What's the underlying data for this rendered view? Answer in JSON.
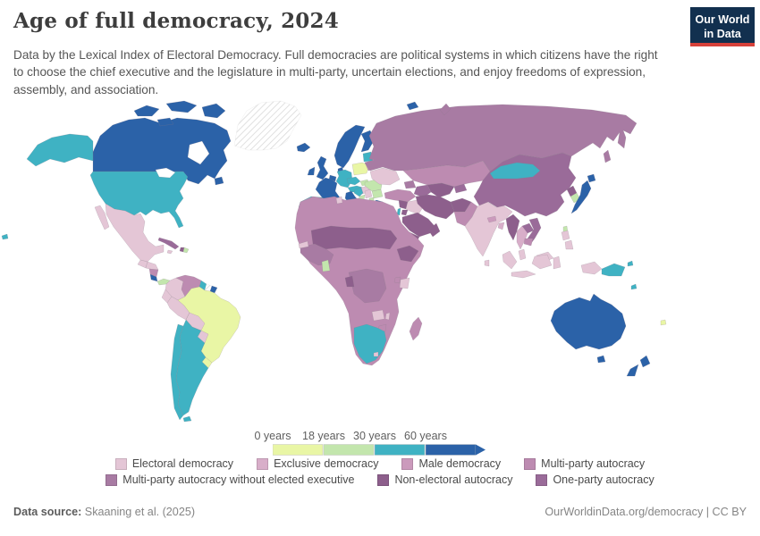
{
  "logo": {
    "line1": "Our World",
    "line2": "in Data"
  },
  "header": {
    "title": "Age of full democracy, 2024",
    "subtitle": "Data by the Lexical Index of Electoral Democracy. Full democracies are political systems in which citizens have the right to choose the chief executive and the legislature in multi-party, uncertain elections, and enjoy freedoms of expression, assembly, and association."
  },
  "footer": {
    "source_label": "Data source:",
    "source_value": " Skaaning et al. (2025)",
    "citation": "OurWorldinData.org/democracy | CC BY"
  },
  "chart_data": {
    "type": "choropleth-map",
    "title": "Age of full democracy, 2024",
    "unit": "years",
    "numeric_scale": {
      "stops": [
        {
          "label": "0 years",
          "color": "#e9f6a5"
        },
        {
          "label": "18 years",
          "color": "#c3e6ad"
        },
        {
          "label": "30 years",
          "color": "#3fb2c3"
        },
        {
          "label": "60 years",
          "color": "#2b62a8"
        }
      ],
      "bins": [
        "0–18 years",
        "18–30 years",
        "30–60 years",
        "60+ years"
      ],
      "arrow_end": true
    },
    "categories": [
      {
        "label": "Electoral democracy",
        "key": "electoral_democracy"
      },
      {
        "label": "Exclusive democracy",
        "key": "exclusive_democracy"
      },
      {
        "label": "Male democracy",
        "key": "male_democracy"
      },
      {
        "label": "Multi-party autocracy",
        "key": "multi_party_autocracy"
      },
      {
        "label": "Multi-party autocracy without elected executive",
        "key": "multi_party_autocracy_no_exec"
      },
      {
        "label": "Non-electoral autocracy",
        "key": "non_electoral_autocracy"
      },
      {
        "label": "One-party autocracy",
        "key": "one_party_autocracy"
      }
    ],
    "legend_rows": [
      [
        0,
        1,
        2,
        3
      ],
      [
        4,
        5,
        6
      ]
    ],
    "palette": {
      "bin_0_18": "#e9f6a5",
      "bin_18_30": "#c3e6ad",
      "bin_30_60": "#3fb2c3",
      "bin_60_plus": "#2b62a8",
      "electoral_democracy": "#e4c6d6",
      "exclusive_democracy": "#d8aec9",
      "male_democracy": "#cb9abc",
      "multi_party_autocracy": "#bd8bb1",
      "multi_party_autocracy_no_exec": "#a87ba3",
      "non_electoral_autocracy": "#8d5f8c",
      "one_party_autocracy": "#9a6b99",
      "no_data_stroke": "#cfcfcf"
    },
    "value_colors": {
      "0–18 years": "bin_0_18",
      "18–30 years": "bin_18_30",
      "30–60 years": "bin_30_60",
      "60+ years": "bin_60_plus",
      "Electoral democracy": "electoral_democracy",
      "Exclusive democracy": "exclusive_democracy",
      "Male democracy": "male_democracy",
      "Multi-party autocracy": "multi_party_autocracy",
      "Multi-party autocracy without elected executive": "multi_party_autocracy_no_exec",
      "Non-electoral autocracy": "non_electoral_autocracy",
      "One-party autocracy": "one_party_autocracy",
      "No data": "no_data"
    },
    "regions": {
      "greenland": "No data",
      "canada": "60+ years",
      "united_states": "30–60 years",
      "mexico": "Electoral democracy",
      "guatemala": "Electoral democracy",
      "honduras": "Electoral democracy",
      "nicaragua": "Multi-party autocracy",
      "costa_rica": "60+ years",
      "panama": "18–30 years",
      "cuba": "One-party autocracy",
      "haiti": "Non-electoral autocracy",
      "dominican_republic": "18–30 years",
      "jamaica": "Electoral democracy",
      "colombia": "Electoral democracy",
      "venezuela": "Multi-party autocracy",
      "guyana": "30–60 years",
      "suriname": "No data",
      "ecuador": "Electoral democracy",
      "peru": "Electoral democracy",
      "brazil": "0–18 years",
      "bolivia": "Electoral democracy",
      "paraguay": "Electoral democracy",
      "uruguay": "0–18 years",
      "argentina": "30–60 years",
      "chile": "30–60 years",
      "iceland": "60+ years",
      "norway": "60+ years",
      "sweden": "60+ years",
      "finland": "60+ years",
      "denmark": "60+ years",
      "united_kingdom": "60+ years",
      "ireland": "60+ years",
      "france": "60+ years",
      "netherlands": "60+ years",
      "switzerland": "60+ years",
      "germany": "30–60 years",
      "poland": "0–18 years",
      "czechia": "30–60 years",
      "slovakia": "18–30 years",
      "austria": "30–60 years",
      "hungary": "Electoral democracy",
      "spain": "30–60 years",
      "portugal": "30–60 years",
      "italy": "60+ years",
      "croatia": "30–60 years",
      "bosnia_and_herzegovina": "18–30 years",
      "serbia": "Electoral democracy",
      "albania": "Electoral democracy",
      "north_macedonia": "18–30 years",
      "bulgaria": "18–30 years",
      "romania": "18–30 years",
      "greece": "60+ years",
      "moldova": "Electoral democracy",
      "ukraine": "Electoral democracy",
      "belarus": "Multi-party autocracy",
      "lithuania": "30–60 years",
      "latvia": "30–60 years",
      "estonia": "30–60 years",
      "russia": "Multi-party autocracy without elected executive",
      "kazakhstan": "Multi-party autocracy",
      "uzbekistan": "Non-electoral autocracy",
      "turkmenistan": "One-party autocracy",
      "tajikistan": "One-party autocracy",
      "azerbaijan": "Multi-party autocracy without elected executive",
      "turkey": "Multi-party autocracy",
      "syria": "Non-electoral autocracy",
      "iraq": "Electoral democracy",
      "israel": "30–60 years",
      "jordan": "Non-electoral autocracy",
      "saudi_arabia": "Non-electoral autocracy",
      "yemen": "Non-electoral autocracy",
      "oman": "Non-electoral autocracy",
      "iran": "Non-electoral autocracy",
      "afghanistan": "Non-electoral autocracy",
      "pakistan": "Multi-party autocracy",
      "india": "Electoral democracy",
      "sri_lanka": "Electoral democracy",
      "nepal": "Male democracy",
      "bangladesh": "Exclusive democracy",
      "china": "One-party autocracy",
      "mongolia": "30–60 years",
      "north_korea": "Non-electoral autocracy",
      "south_korea": "18–30 years",
      "japan": "60+ years",
      "taiwan": "18–30 years",
      "myanmar": "Non-electoral autocracy",
      "thailand": "Exclusive democracy",
      "laos": "One-party autocracy",
      "vietnam": "One-party autocracy",
      "cambodia": "Multi-party autocracy",
      "malaysia": "Electoral democracy",
      "philippines": "Electoral democracy",
      "indonesia": "Electoral democracy",
      "papua_new_guinea": "30–60 years",
      "solomon_islands": "30–60 years",
      "fiji": "0–18 years",
      "australia": "60+ years",
      "new_zealand": "60+ years",
      "morocco": "Multi-party autocracy",
      "algeria": "Multi-party autocracy",
      "tunisia": "Electoral democracy",
      "libya": "Multi-party autocracy",
      "egypt": "Multi-party autocracy",
      "mali": "Non-electoral autocracy",
      "niger": "Non-electoral autocracy",
      "chad": "Non-electoral autocracy",
      "sudan": "Non-electoral autocracy",
      "senegal": "Electoral democracy",
      "guinea": "Multi-party autocracy without elected executive",
      "ghana": "18–30 years",
      "nigeria": "Multi-party autocracy",
      "ethiopia": "Non-electoral autocracy",
      "uganda": "Multi-party autocracy",
      "kenya": "Electoral democracy",
      "tanzania": "Multi-party autocracy",
      "dr_congo": "Multi-party autocracy without elected executive",
      "congo": "Non-electoral autocracy",
      "angola": "Multi-party autocracy",
      "zambia": "Electoral democracy",
      "malawi": "Electoral democracy",
      "zimbabwe": "Multi-party autocracy",
      "mozambique": "Multi-party autocracy",
      "madagascar": "Multi-party autocracy",
      "namibia": "30–60 years",
      "botswana": "30–60 years",
      "south_africa": "30–60 years",
      "lesotho": "Electoral democracy"
    }
  }
}
